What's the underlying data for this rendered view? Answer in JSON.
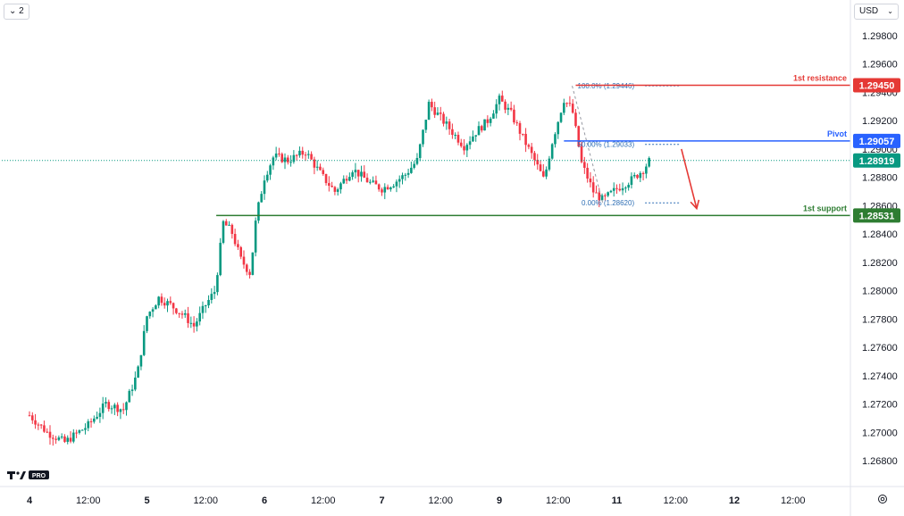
{
  "toolbar": {
    "collapse_label": "⌄ 2",
    "currency": "USD"
  },
  "chart_data": {
    "type": "candlestick",
    "y_axis": {
      "ticks": [
        "1.29800",
        "1.29600",
        "1.29400",
        "1.29200",
        "1.29000",
        "1.28800",
        "1.28600",
        "1.28400",
        "1.28200",
        "1.28000",
        "1.27800",
        "1.27600",
        "1.27400",
        "1.27200",
        "1.27000",
        "1.26800"
      ],
      "range": [
        1.267,
        1.2995
      ]
    },
    "x_axis": {
      "labels": [
        {
          "text": "4",
          "day": true,
          "t": 0
        },
        {
          "text": "12:00",
          "day": false,
          "t": 0.5
        },
        {
          "text": "5",
          "day": true,
          "t": 1
        },
        {
          "text": "12:00",
          "day": false,
          "t": 1.5
        },
        {
          "text": "6",
          "day": true,
          "t": 2
        },
        {
          "text": "12:00",
          "day": false,
          "t": 2.5
        },
        {
          "text": "7",
          "day": true,
          "t": 3
        },
        {
          "text": "12:00",
          "day": false,
          "t": 3.5
        },
        {
          "text": "9",
          "day": true,
          "t": 4
        },
        {
          "text": "12:00",
          "day": false,
          "t": 4.5
        },
        {
          "text": "11",
          "day": true,
          "t": 5
        },
        {
          "text": "12:00",
          "day": false,
          "t": 5.5
        },
        {
          "text": "12",
          "day": true,
          "t": 6
        },
        {
          "text": "12:00",
          "day": false,
          "t": 6.5
        }
      ],
      "unit": "day index (trading session)",
      "range": [
        0,
        7.2
      ]
    },
    "price_path": [
      [
        0,
        1.2712
      ],
      [
        0.15,
        1.27
      ],
      [
        0.3,
        1.2693
      ],
      [
        0.5,
        1.2705
      ],
      [
        0.65,
        1.272
      ],
      [
        0.8,
        1.2716
      ],
      [
        0.92,
        1.2742
      ],
      [
        1.0,
        1.2782
      ],
      [
        1.1,
        1.2795
      ],
      [
        1.2,
        1.279
      ],
      [
        1.32,
        1.2782
      ],
      [
        1.4,
        1.2775
      ],
      [
        1.5,
        1.279
      ],
      [
        1.58,
        1.28
      ],
      [
        1.65,
        1.2848
      ],
      [
        1.72,
        1.2842
      ],
      [
        1.8,
        1.2822
      ],
      [
        1.88,
        1.2812
      ],
      [
        1.93,
        1.2852
      ],
      [
        2.0,
        1.288
      ],
      [
        2.08,
        1.2895
      ],
      [
        2.2,
        1.2892
      ],
      [
        2.35,
        1.2898
      ],
      [
        2.5,
        1.288
      ],
      [
        2.6,
        1.287
      ],
      [
        2.75,
        1.2886
      ],
      [
        2.9,
        1.2876
      ],
      [
        3.0,
        1.2872
      ],
      [
        3.1,
        1.2876
      ],
      [
        3.2,
        1.2882
      ],
      [
        3.3,
        1.2892
      ],
      [
        3.4,
        1.2932
      ],
      [
        3.5,
        1.2922
      ],
      [
        3.6,
        1.2912
      ],
      [
        3.7,
        1.2902
      ],
      [
        3.8,
        1.2912
      ],
      [
        3.9,
        1.292
      ],
      [
        4.0,
        1.2935
      ],
      [
        4.1,
        1.2925
      ],
      [
        4.2,
        1.2908
      ],
      [
        4.3,
        1.2892
      ],
      [
        4.38,
        1.2878
      ],
      [
        4.45,
        1.2905
      ],
      [
        4.55,
        1.2935
      ],
      [
        4.62,
        1.2928
      ],
      [
        4.7,
        1.289
      ],
      [
        4.8,
        1.287
      ],
      [
        4.88,
        1.2864
      ],
      [
        5.0,
        1.2872
      ],
      [
        5.12,
        1.2878
      ],
      [
        5.22,
        1.2885
      ],
      [
        5.28,
        1.2892
      ]
    ],
    "current_price": 1.28919,
    "fibonacci": {
      "t_start": 4.48,
      "t_end": 5.5,
      "levels": [
        {
          "label": "100.0% (1.29446)",
          "value": 1.29446
        },
        {
          "label": "50.00% (1.29033)",
          "value": 1.29033
        },
        {
          "label": "0.00% (1.28620)",
          "value": 1.2862
        }
      ]
    },
    "horizontal_lines": [
      {
        "name": "1st resistance",
        "value": 1.2945,
        "color": "#e53935",
        "t_start": 4.65,
        "price_label": "1.29450"
      },
      {
        "name": "Pivot",
        "value": 1.29057,
        "color": "#2962ff",
        "t_start": 4.55,
        "price_label": "1.29057"
      },
      {
        "name": "1st support",
        "value": 1.28531,
        "color": "#2e7d32",
        "t_start": 1.59,
        "price_label": "1.28531"
      }
    ],
    "current_price_label": "1.28919",
    "current_price_color": "#089981",
    "bull_color": "#089981",
    "bear_color": "#f23645",
    "arrow": {
      "from": [
        5.55,
        1.29
      ],
      "to": [
        5.68,
        1.2858
      ],
      "color": "#e53935"
    },
    "grid": false
  }
}
